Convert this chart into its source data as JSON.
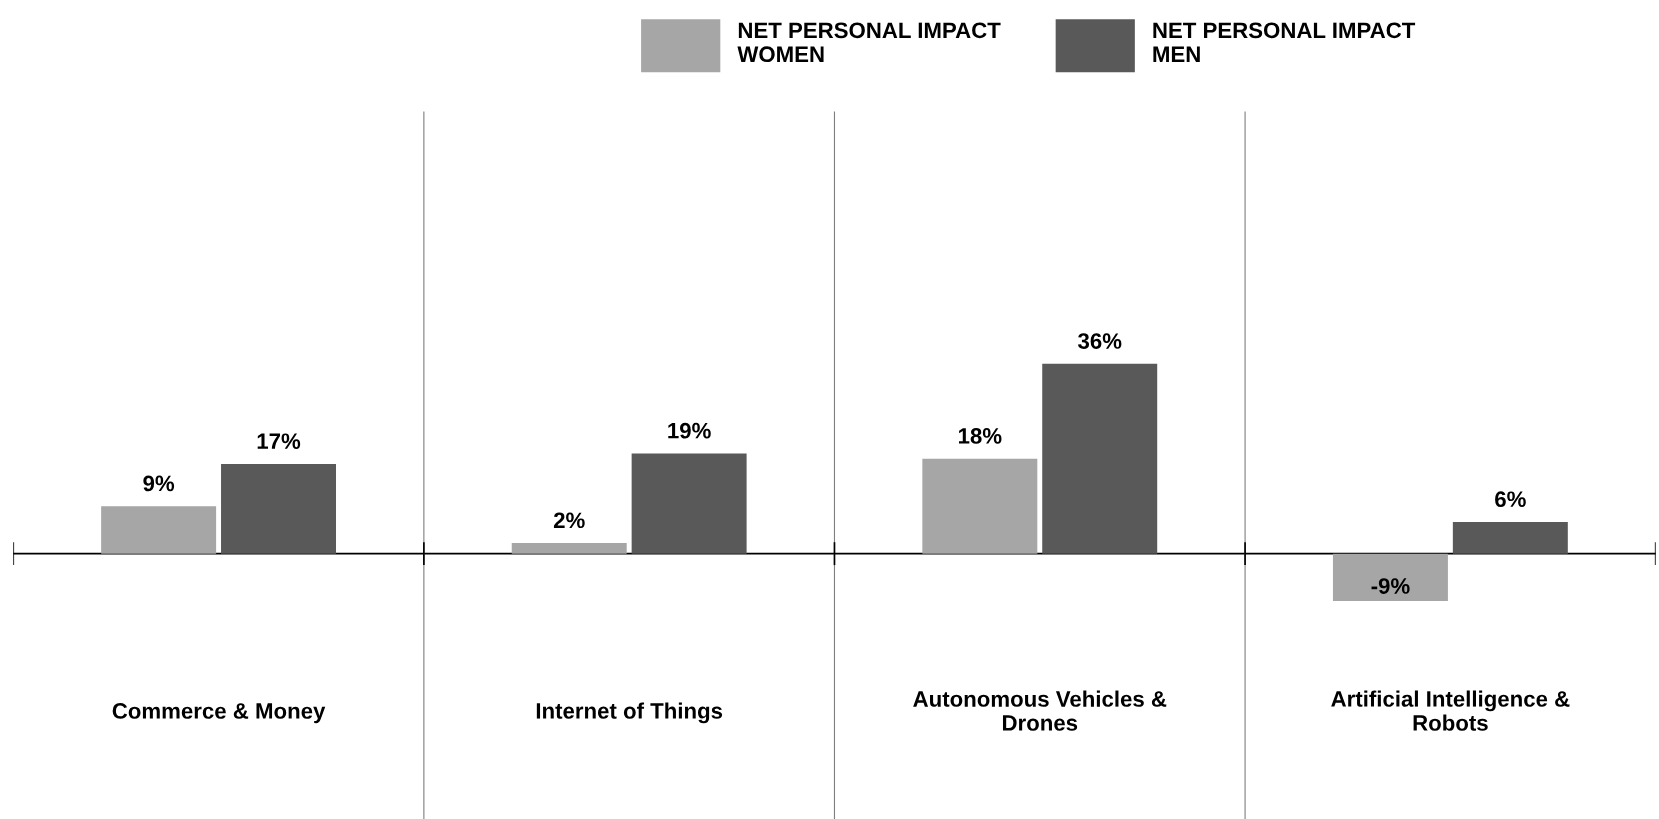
{
  "chart_data": {
    "type": "bar",
    "categories": [
      "Commerce & Money",
      "Internet of Things",
      "Autonomous Vehicles & Drones",
      "Artificial Intelligence & Robots"
    ],
    "series": [
      {
        "name": "NET PERSONAL IMPACT WOMEN",
        "color": "#a6a6a6",
        "values": [
          9,
          2,
          18,
          -9
        ],
        "value_labels": [
          "9%",
          "2%",
          "18%",
          "-9%"
        ]
      },
      {
        "name": "NET PERSONAL IMPACT MEN",
        "color": "#595959",
        "values": [
          17,
          19,
          36,
          6
        ],
        "value_labels": [
          "17%",
          "19%",
          "36%",
          "6%"
        ]
      }
    ],
    "legend": "top"
  }
}
